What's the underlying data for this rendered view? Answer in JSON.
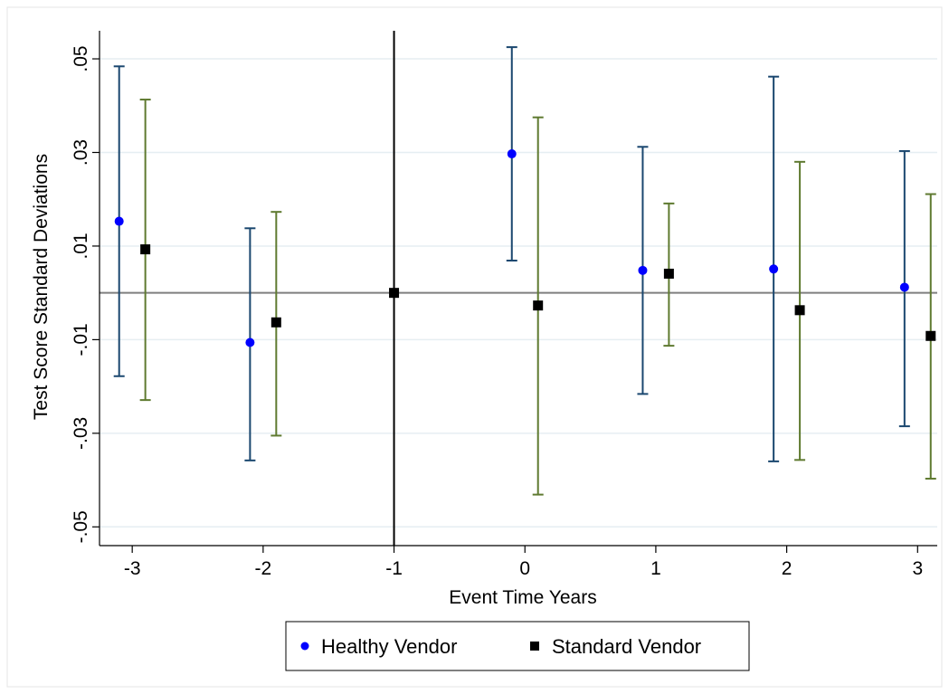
{
  "chart_data": {
    "type": "scatter",
    "title": "",
    "xlabel": "Event Time Years",
    "ylabel": "Test Score Standard Deviations",
    "xlim": [
      -3.25,
      3.15
    ],
    "ylim": [
      -0.054,
      0.056
    ],
    "x_ticks": [
      -3,
      -2,
      -1,
      0,
      1,
      2,
      3
    ],
    "x_tick_labels": [
      "-3",
      "-2",
      "-1",
      "0",
      "1",
      "2",
      "3"
    ],
    "y_ticks": [
      -0.05,
      -0.03,
      -0.01,
      0.01,
      0.03,
      0.05
    ],
    "y_tick_labels": [
      "-.05",
      "-.03",
      "-.01",
      ".01",
      ".03",
      ".05"
    ],
    "grid": true,
    "reference_lines": {
      "horizontal_y": 0,
      "vertical_x": -1
    },
    "legend": {
      "position": "bottom",
      "entries": [
        "Healthy Vendor",
        "Standard Vendor"
      ]
    },
    "series": [
      {
        "name": "Healthy Vendor",
        "marker": "circle",
        "marker_color": "#0000ff",
        "bar_color": "#1a476f",
        "x": [
          -3.1,
          -2.1,
          -0.1,
          0.9,
          1.9,
          2.9
        ],
        "y": [
          0.0153,
          -0.0106,
          0.0297,
          0.0048,
          0.0051,
          0.0012
        ],
        "ci_low": [
          -0.0178,
          -0.0358,
          0.0069,
          -0.0216,
          -0.036,
          -0.0285
        ],
        "ci_high": [
          0.0484,
          0.0138,
          0.0525,
          0.0312,
          0.0462,
          0.0303
        ]
      },
      {
        "name": "Standard Vendor",
        "marker": "square",
        "marker_color": "#000000",
        "bar_color": "#5f7a30",
        "x": [
          -2.9,
          -1.9,
          -1,
          0.1,
          1.1,
          2.1,
          3.1
        ],
        "y": [
          0.0093,
          -0.0063,
          0,
          -0.0027,
          0.0041,
          -0.0037,
          -0.0092
        ],
        "ci_low": [
          -0.0229,
          -0.0305,
          0,
          -0.0431,
          -0.0113,
          -0.0357,
          -0.0397
        ],
        "ci_high": [
          0.0413,
          0.0173,
          0,
          0.0375,
          0.0191,
          0.028,
          0.0211
        ]
      }
    ]
  }
}
